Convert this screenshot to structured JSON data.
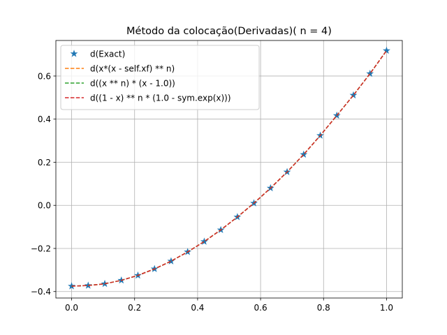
{
  "chart_data": {
    "type": "line",
    "title": "Método da colocação(Derivadas)( n = 4)",
    "xlabel": "",
    "ylabel": "",
    "xlim": [
      -0.05,
      1.05
    ],
    "ylim": [
      -0.43,
      0.765
    ],
    "xticks": [
      0.0,
      0.2,
      0.4,
      0.6,
      0.8,
      1.0
    ],
    "xtick_labels": [
      "0.0",
      "0.2",
      "0.4",
      "0.6",
      "0.8",
      "1.0"
    ],
    "yticks": [
      -0.4,
      -0.2,
      0.0,
      0.2,
      0.4,
      0.6
    ],
    "ytick_labels": [
      "−0.4",
      "−0.2",
      "0.0",
      "0.2",
      "0.4",
      "0.6"
    ],
    "grid": true,
    "legend_position": "top-left",
    "x": [
      0.0,
      0.0526,
      0.1053,
      0.1579,
      0.2105,
      0.2632,
      0.3158,
      0.3684,
      0.4211,
      0.4737,
      0.5263,
      0.5789,
      0.6316,
      0.6842,
      0.7368,
      0.7895,
      0.8421,
      0.8947,
      0.9474,
      1.0
    ],
    "series": [
      {
        "name": "d(Exact)",
        "style": "star-markers",
        "color": "#1f77b4",
        "values": [
          -0.375,
          -0.372,
          -0.364,
          -0.348,
          -0.325,
          -0.295,
          -0.259,
          -0.216,
          -0.168,
          -0.114,
          -0.054,
          0.01,
          0.08,
          0.155,
          0.236,
          0.324,
          0.417,
          0.511,
          0.611,
          0.718
        ]
      },
      {
        "name": "d(x*(x - self.xf) ** n)",
        "style": "dashed",
        "color": "#ff7f0e",
        "values": [
          -0.375,
          -0.372,
          -0.364,
          -0.348,
          -0.325,
          -0.295,
          -0.259,
          -0.216,
          -0.168,
          -0.114,
          -0.054,
          0.01,
          0.08,
          0.155,
          0.236,
          0.324,
          0.417,
          0.511,
          0.611,
          0.718
        ]
      },
      {
        "name": "d((x ** n) * (x - 1.0))",
        "style": "dashed",
        "color": "#2ca02c",
        "values": [
          -0.375,
          -0.372,
          -0.364,
          -0.348,
          -0.325,
          -0.295,
          -0.259,
          -0.216,
          -0.168,
          -0.114,
          -0.054,
          0.01,
          0.08,
          0.155,
          0.236,
          0.324,
          0.417,
          0.511,
          0.611,
          0.718
        ]
      },
      {
        "name": "d((1 - x) ** n * (1.0 - sym.exp(x)))",
        "style": "dashed",
        "color": "#d62728",
        "values": [
          -0.375,
          -0.372,
          -0.364,
          -0.348,
          -0.325,
          -0.295,
          -0.259,
          -0.216,
          -0.168,
          -0.114,
          -0.054,
          0.01,
          0.08,
          0.155,
          0.236,
          0.324,
          0.417,
          0.511,
          0.611,
          0.718
        ]
      }
    ]
  }
}
